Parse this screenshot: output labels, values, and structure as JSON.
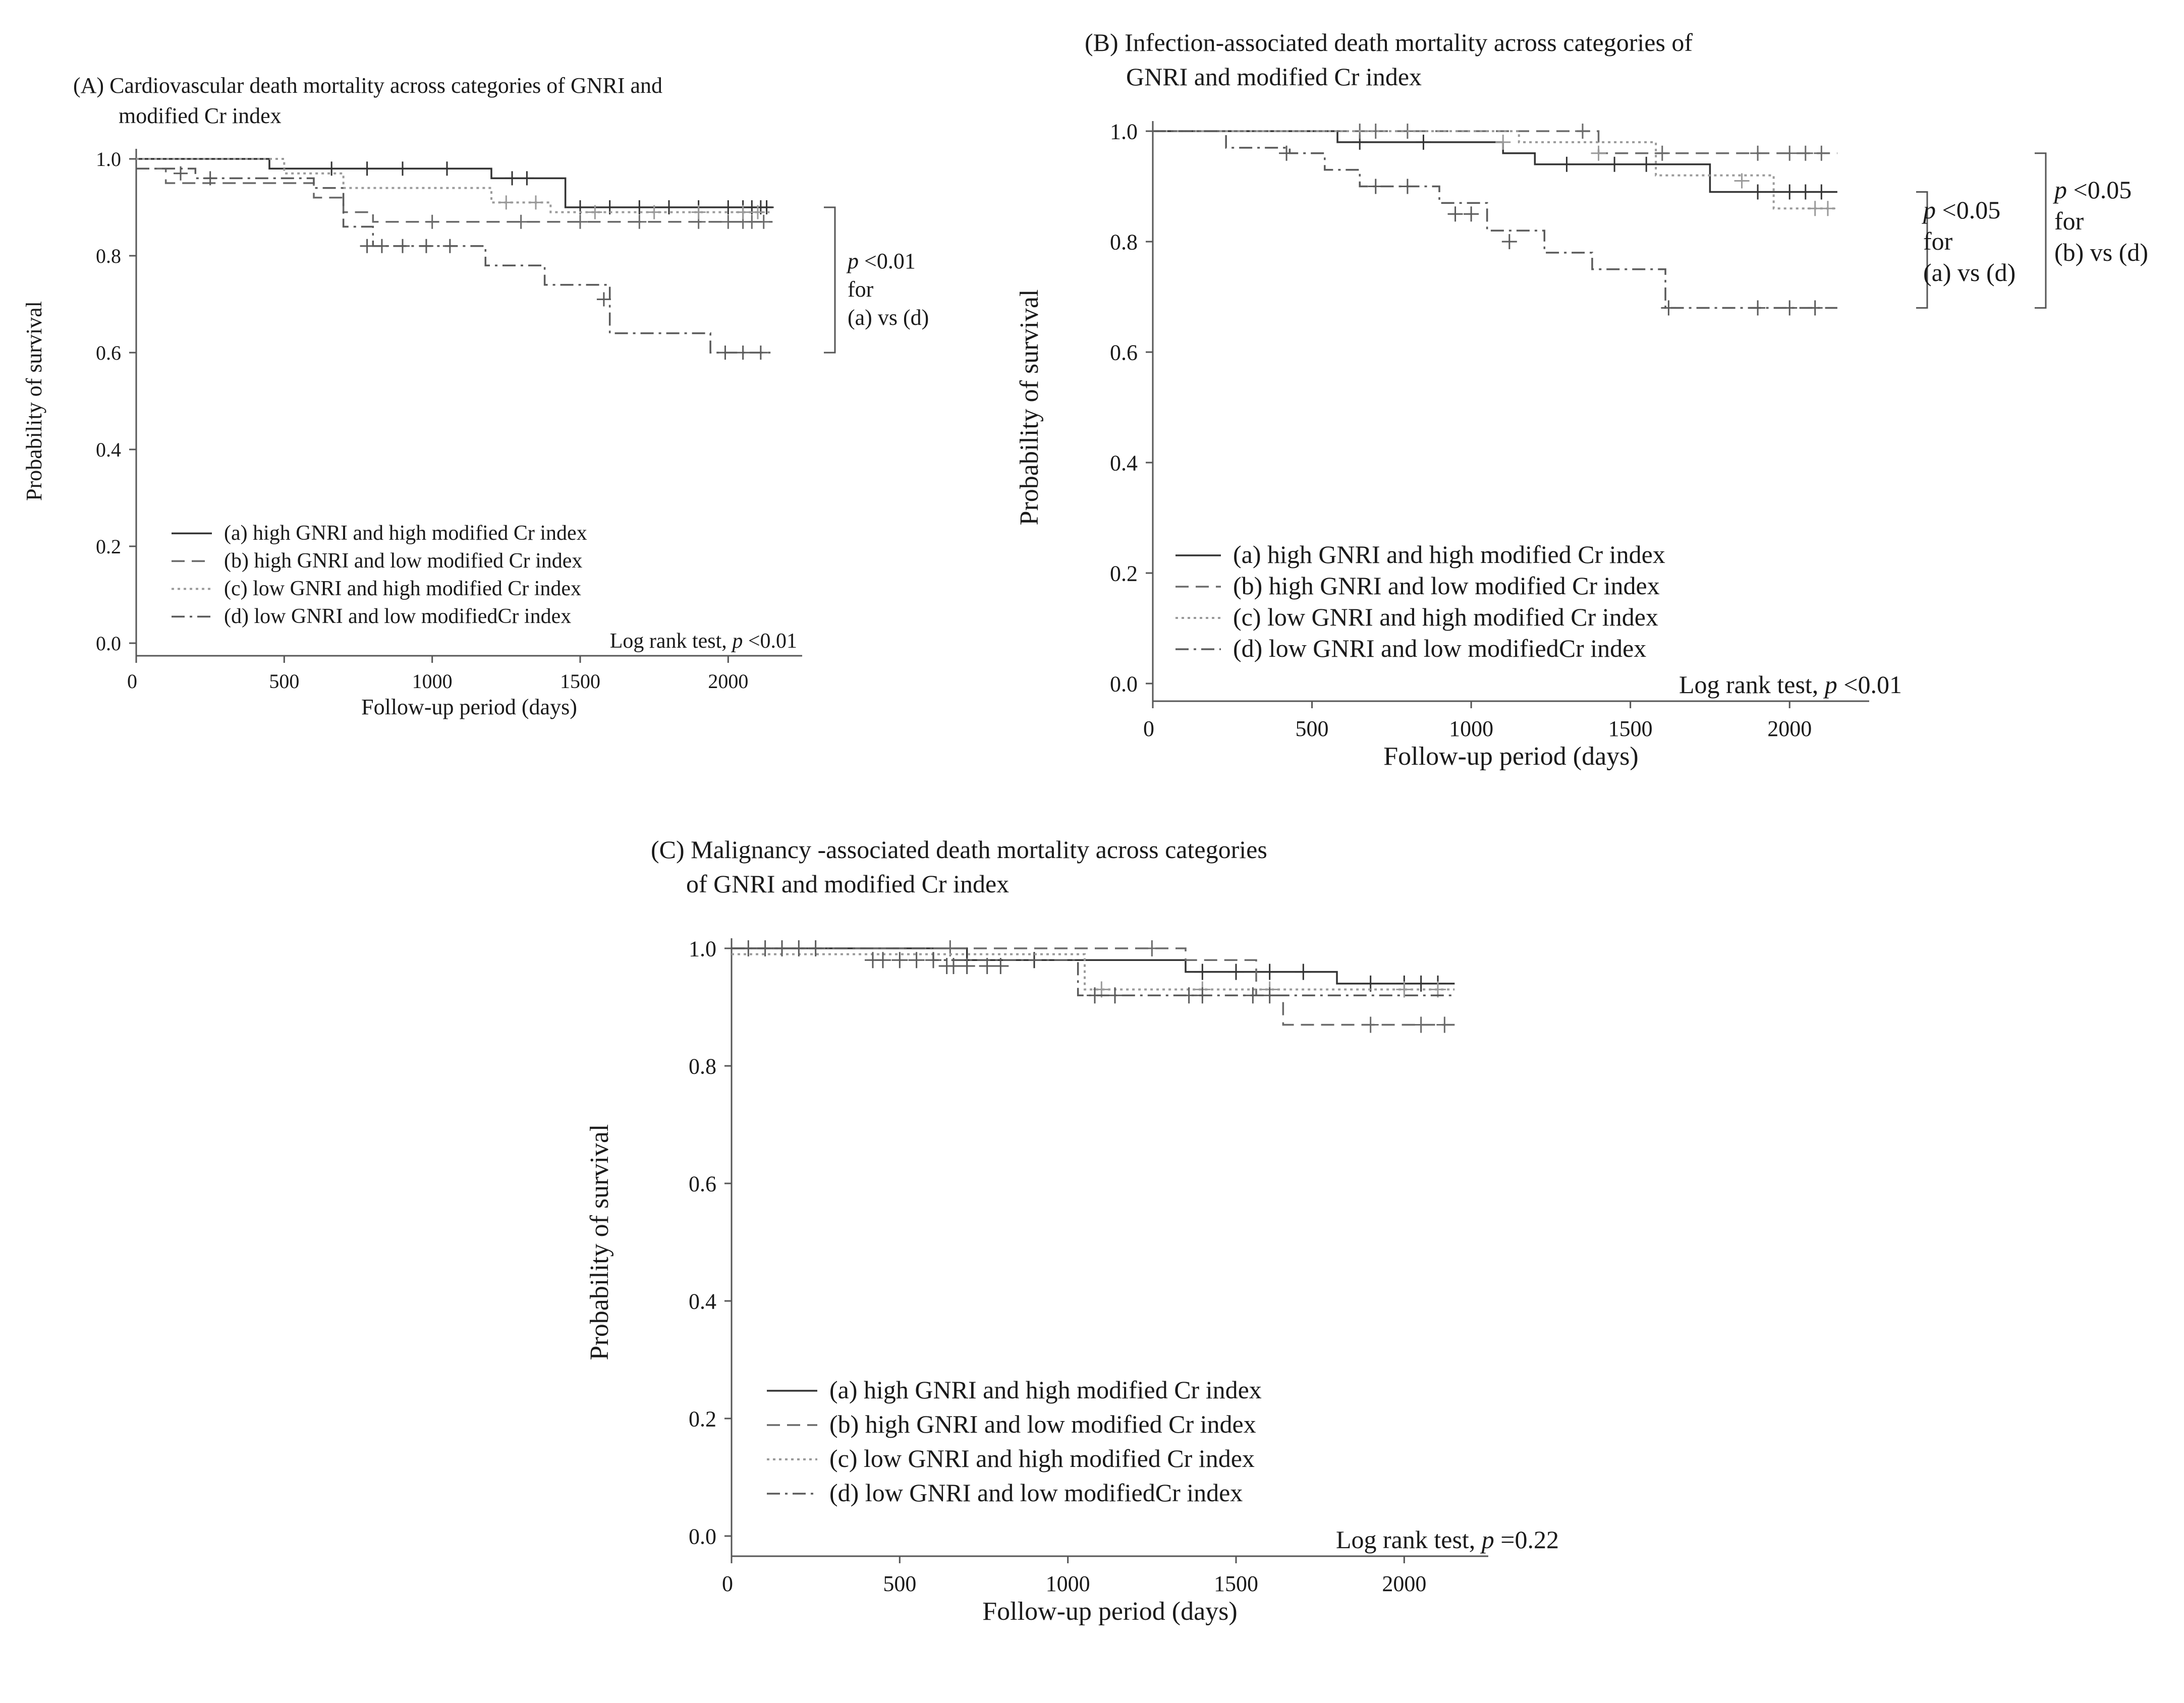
{
  "legend_labels": [
    "(a) high GNRI and high modified Cr index",
    "(b) high GNRI and low modified Cr index",
    "(c) low GNRI and high modified Cr index",
    "(d) low GNRI and low modifiedCr    index"
  ],
  "bracket_text": {
    "p_letter": "p",
    "for": "for"
  },
  "chart_data": [
    {
      "type": "line",
      "panel": "A",
      "title_line1": "(A) Cardiovascular death mortality across categories of GNRI and",
      "title_line2": "modified Cr index",
      "xlabel": "Follow-up period (days)",
      "ylabel": "Probability of survival",
      "xlim": [
        0,
        2250
      ],
      "ylim": [
        0,
        1.0
      ],
      "x_ticks": [
        0,
        500,
        1000,
        1500,
        2000
      ],
      "y_ticks": [
        "0.0",
        "0.2",
        "0.4",
        "0.6",
        "0.8",
        "1.0"
      ],
      "stat_prefix": "Log rank test, ",
      "stat_p": "p",
      "stat_value": " <0.01",
      "bracket_sig": " <0.01",
      "bracket_pair": "(a) vs (d)",
      "series": [
        {
          "name": "(a) high GNRI and high modified Cr index",
          "x": [
            0,
            450,
            1200,
            1450,
            2150
          ],
          "y": [
            1.0,
            0.98,
            0.96,
            0.9,
            0.9
          ],
          "censor": [
            [
              660,
              0.98
            ],
            [
              780,
              0.98
            ],
            [
              900,
              0.98
            ],
            [
              1050,
              0.98
            ],
            [
              1270,
              0.96
            ],
            [
              1320,
              0.96
            ],
            [
              1500,
              0.9
            ],
            [
              1600,
              0.9
            ],
            [
              1700,
              0.9
            ],
            [
              1800,
              0.9
            ],
            [
              1900,
              0.9
            ],
            [
              2000,
              0.9
            ],
            [
              2050,
              0.9
            ],
            [
              2080,
              0.9
            ],
            [
              2110,
              0.9
            ],
            [
              2130,
              0.9
            ]
          ]
        },
        {
          "name": "(b) high GNRI and low modified Cr index",
          "x": [
            0,
            100,
            420,
            600,
            700,
            800,
            2150
          ],
          "y": [
            0.98,
            0.95,
            0.95,
            0.92,
            0.89,
            0.87,
            0.87
          ],
          "censor": [
            [
              1000,
              0.87
            ],
            [
              1300,
              0.87
            ],
            [
              1500,
              0.87
            ],
            [
              1700,
              0.87
            ],
            [
              1900,
              0.87
            ],
            [
              2000,
              0.87
            ],
            [
              2050,
              0.87
            ],
            [
              2080,
              0.87
            ],
            [
              2120,
              0.87
            ]
          ]
        },
        {
          "name": "(c) low GNRI and high modified Cr index",
          "x": [
            0,
            500,
            700,
            1200,
            1400,
            2150
          ],
          "y": [
            1.0,
            0.97,
            0.94,
            0.91,
            0.89,
            0.89
          ],
          "censor": [
            [
              1250,
              0.91
            ],
            [
              1350,
              0.91
            ],
            [
              1550,
              0.89
            ],
            [
              1750,
              0.89
            ],
            [
              1900,
              0.89
            ],
            [
              2050,
              0.89
            ],
            [
              2100,
              0.89
            ]
          ]
        },
        {
          "name": "(d) low GNRI and low modifiedCr    index",
          "x": [
            0,
            200,
            600,
            700,
            800,
            1180,
            1380,
            1600,
            1940,
            2150
          ],
          "y": [
            0.98,
            0.96,
            0.94,
            0.86,
            0.82,
            0.78,
            0.74,
            0.64,
            0.6,
            0.6
          ],
          "censor": [
            [
              150,
              0.97
            ],
            [
              250,
              0.96
            ],
            [
              780,
              0.82
            ],
            [
              830,
              0.82
            ],
            [
              900,
              0.82
            ],
            [
              980,
              0.82
            ],
            [
              1060,
              0.82
            ],
            [
              1580,
              0.71
            ],
            [
              1990,
              0.6
            ],
            [
              2050,
              0.6
            ],
            [
              2110,
              0.6
            ]
          ]
        }
      ]
    },
    {
      "type": "line",
      "panel": "B",
      "title_line1": "(B) Infection-associated death mortality across categories of",
      "title_line2": "GNRI and modified Cr index",
      "xlabel": "Follow-up period (days)",
      "ylabel": "Probability of survival",
      "xlim": [
        0,
        2250
      ],
      "ylim": [
        0,
        1.0
      ],
      "x_ticks": [
        0,
        500,
        1000,
        1500,
        2000
      ],
      "y_ticks": [
        "0.0",
        "0.2",
        "0.4",
        "0.6",
        "0.8",
        "1.0"
      ],
      "stat_prefix": "Log rank test, ",
      "stat_p": "p",
      "stat_value": " <0.01",
      "bracket1_sig": " <0.05",
      "bracket1_pair": "(a) vs (d)",
      "bracket2_sig": " <0.05",
      "bracket2_pair": "(b) vs (d)",
      "series": [
        {
          "name": "(a) high GNRI and high modified Cr index",
          "x": [
            0,
            580,
            1100,
            1200,
            1750,
            2150
          ],
          "y": [
            1.0,
            0.98,
            0.96,
            0.94,
            0.89,
            0.89
          ],
          "censor": [
            [
              650,
              0.98
            ],
            [
              850,
              0.98
            ],
            [
              1300,
              0.94
            ],
            [
              1450,
              0.94
            ],
            [
              1550,
              0.94
            ],
            [
              1900,
              0.89
            ],
            [
              2000,
              0.89
            ],
            [
              2050,
              0.89
            ],
            [
              2100,
              0.89
            ]
          ]
        },
        {
          "name": "(b) high GNRI and low modified Cr index",
          "x": [
            0,
            1400,
            2150
          ],
          "y": [
            1.0,
            0.96,
            0.96
          ],
          "censor": [
            [
              650,
              1.0
            ],
            [
              700,
              1.0
            ],
            [
              800,
              1.0
            ],
            [
              1350,
              1.0
            ],
            [
              1600,
              0.96
            ],
            [
              1900,
              0.96
            ],
            [
              2000,
              0.96
            ],
            [
              2050,
              0.96
            ],
            [
              2100,
              0.96
            ]
          ]
        },
        {
          "name": "(c) low GNRI and high modified Cr index",
          "x": [
            0,
            1150,
            1580,
            1950,
            2150
          ],
          "y": [
            1.0,
            0.98,
            0.92,
            0.86,
            0.86
          ],
          "censor": [
            [
              1100,
              0.98
            ],
            [
              1400,
              0.96
            ],
            [
              1850,
              0.91
            ],
            [
              2080,
              0.86
            ],
            [
              2120,
              0.86
            ]
          ]
        },
        {
          "name": "(d) low GNRI and low modifiedCr    index",
          "x": [
            0,
            230,
            430,
            540,
            650,
            900,
            1050,
            1230,
            1380,
            1600,
            1610,
            2150
          ],
          "y": [
            1.0,
            0.97,
            0.96,
            0.93,
            0.9,
            0.87,
            0.82,
            0.78,
            0.75,
            0.75,
            0.68,
            0.68
          ],
          "censor": [
            [
              420,
              0.96
            ],
            [
              700,
              0.9
            ],
            [
              800,
              0.9
            ],
            [
              950,
              0.85
            ],
            [
              1000,
              0.85
            ],
            [
              1120,
              0.8
            ],
            [
              1620,
              0.68
            ],
            [
              1900,
              0.68
            ],
            [
              2000,
              0.68
            ],
            [
              2080,
              0.68
            ]
          ]
        }
      ]
    },
    {
      "type": "line",
      "panel": "C",
      "title_line1": "(C) Malignancy -associated death mortality across categories",
      "title_line2": "of GNRI and modified Cr index",
      "xlabel": "Follow-up period (days)",
      "ylabel": "Probability of survival",
      "xlim": [
        0,
        2250
      ],
      "ylim": [
        0,
        1.0
      ],
      "x_ticks": [
        0,
        500,
        1000,
        1500,
        2000
      ],
      "y_ticks": [
        "0.0",
        "0.2",
        "0.4",
        "0.6",
        "0.8",
        "1.0"
      ],
      "stat_prefix": "Log rank test, ",
      "stat_p": "p",
      "stat_value": " =0.22",
      "series": [
        {
          "name": "(a) high GNRI and high modified Cr index",
          "x": [
            0,
            700,
            1350,
            1800,
            2150
          ],
          "y": [
            1.0,
            0.98,
            0.96,
            0.94,
            0.94
          ],
          "censor": [
            [
              700,
              0.98
            ],
            [
              900,
              0.98
            ],
            [
              1400,
              0.96
            ],
            [
              1500,
              0.96
            ],
            [
              1600,
              0.96
            ],
            [
              1700,
              0.96
            ],
            [
              1900,
              0.94
            ],
            [
              2000,
              0.94
            ],
            [
              2050,
              0.94
            ],
            [
              2100,
              0.94
            ]
          ]
        },
        {
          "name": "(b) high GNRI and low modified Cr index",
          "x": [
            0,
            1350,
            1560,
            1640,
            2150
          ],
          "y": [
            1.0,
            0.98,
            0.92,
            0.87,
            0.87
          ],
          "censor": [
            [
              650,
              1.0
            ],
            [
              1250,
              1.0
            ],
            [
              1900,
              0.87
            ],
            [
              2050,
              0.87
            ],
            [
              2120,
              0.87
            ]
          ]
        },
        {
          "name": "(c) low GNRI and high modified Cr index",
          "x": [
            0,
            1050,
            2150
          ],
          "y": [
            0.99,
            0.93,
            0.93
          ],
          "censor": [
            [
              700,
              0.97
            ],
            [
              1100,
              0.93
            ],
            [
              1400,
              0.93
            ],
            [
              1600,
              0.93
            ],
            [
              2000,
              0.93
            ],
            [
              2100,
              0.93
            ]
          ]
        },
        {
          "name": "(d) low GNRI and low modifiedCr    index",
          "x": [
            0,
            600,
            1030,
            1350,
            1560,
            2150
          ],
          "y": [
            1.0,
            0.98,
            0.92,
            0.92,
            0.92,
            0.92
          ],
          "censor": [
            [
              50,
              1.0
            ],
            [
              100,
              1.0
            ],
            [
              150,
              1.0
            ],
            [
              200,
              1.0
            ],
            [
              250,
              1.0
            ],
            [
              420,
              0.98
            ],
            [
              450,
              0.98
            ],
            [
              500,
              0.98
            ],
            [
              550,
              0.98
            ],
            [
              600,
              0.98
            ],
            [
              640,
              0.97
            ],
            [
              660,
              0.97
            ],
            [
              700,
              0.97
            ],
            [
              760,
              0.97
            ],
            [
              800,
              0.97
            ],
            [
              1080,
              0.92
            ],
            [
              1140,
              0.92
            ],
            [
              1360,
              0.92
            ],
            [
              1400,
              0.92
            ],
            [
              1550,
              0.92
            ],
            [
              1600,
              0.92
            ]
          ]
        }
      ]
    }
  ]
}
